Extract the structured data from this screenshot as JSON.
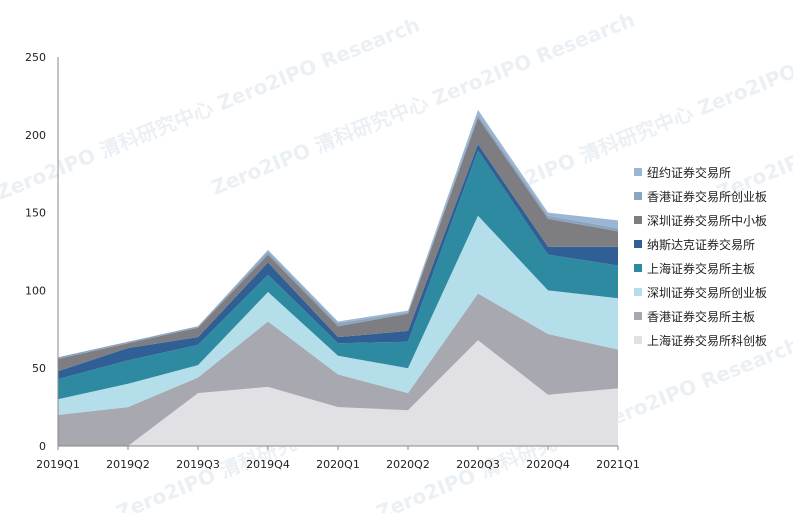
{
  "chart_data": {
    "type": "area",
    "stacked": true,
    "categories": [
      "2019Q1",
      "2019Q2",
      "2019Q3",
      "2019Q4",
      "2020Q1",
      "2020Q2",
      "2020Q3",
      "2020Q4",
      "2021Q1"
    ],
    "ylim": [
      0,
      250
    ],
    "yticks": [
      0,
      50,
      100,
      150,
      200,
      250
    ],
    "grid": false,
    "legend_position": "right",
    "series": [
      {
        "name": "上海证券交易所科创板",
        "color": "#e1e1e5",
        "values": [
          0,
          0,
          34,
          38,
          25,
          23,
          68,
          33,
          37
        ]
      },
      {
        "name": "香港证券交易所主板",
        "color": "#a8a8b0",
        "values": [
          20,
          25,
          10,
          42,
          21,
          11,
          30,
          39,
          25
        ]
      },
      {
        "name": "深圳证券交易所创业板",
        "color": "#b4deea",
        "values": [
          10,
          15,
          8,
          19,
          12,
          16,
          50,
          28,
          33
        ]
      },
      {
        "name": "上海证券交易所主板",
        "color": "#2e8aa0",
        "values": [
          13,
          15,
          13,
          11,
          8,
          17,
          42,
          23,
          21
        ]
      },
      {
        "name": "纳斯达克证券交易所",
        "color": "#2f5f95",
        "values": [
          5,
          8,
          5,
          8,
          4,
          7,
          4,
          5,
          12
        ]
      },
      {
        "name": "深圳证券交易所中小板",
        "color": "#7e7e82",
        "values": [
          8,
          3,
          6,
          5,
          7,
          11,
          17,
          18,
          10
        ]
      },
      {
        "name": "香港证券交易所创业板",
        "color": "#8ba4bf",
        "values": [
          1,
          1,
          1,
          2,
          2,
          1,
          2,
          2,
          2
        ]
      },
      {
        "name": "纽约证券交易所",
        "color": "#9bb6d4",
        "values": [
          0,
          0,
          0,
          1,
          1,
          1,
          3,
          2,
          5
        ]
      }
    ],
    "watermark": "Zero2IPO 清科研究中心 Zero2IPO Research"
  }
}
